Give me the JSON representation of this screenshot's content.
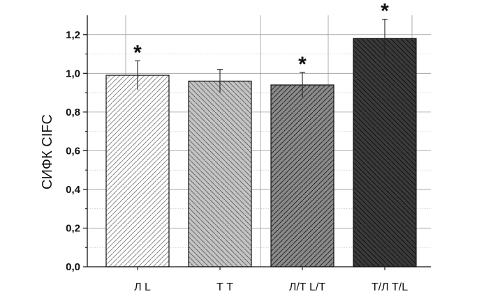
{
  "chart_data": {
    "type": "bar",
    "title": "",
    "xlabel": "",
    "ylabel": "СИФК CIFC",
    "ylim": [
      0,
      1.3
    ],
    "yticks": [
      "0,0",
      "0,2",
      "0,4",
      "0,6",
      "0,8",
      "1,0",
      "1,2"
    ],
    "categories": [
      "Л L",
      "Т T",
      "Л/Т L/T",
      "Т/Л T/L"
    ],
    "values": [
      0.99,
      0.96,
      0.94,
      1.18
    ],
    "errors": [
      0.075,
      0.06,
      0.065,
      0.1
    ],
    "significance": [
      "*",
      "",
      "*",
      "*"
    ],
    "bar_fills": [
      "#ffffff",
      "#c4c4c4",
      "#8a8a8a",
      "#3a3a3a"
    ],
    "hatch_colors": [
      "#8a8a8a",
      "#6a6a6a",
      "#2a2a2a",
      "#111111"
    ],
    "hatch_directions": [
      "/",
      "\\",
      "/",
      "\\"
    ],
    "grid": true,
    "legend": "none"
  }
}
